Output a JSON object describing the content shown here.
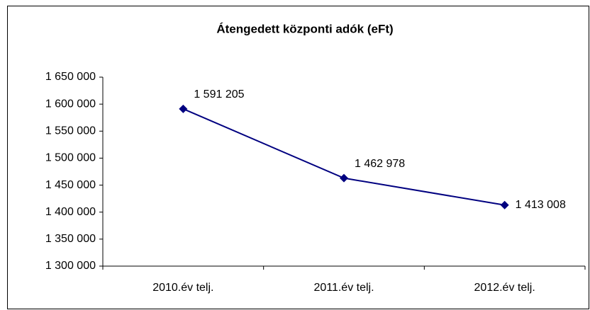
{
  "chart_data": {
    "type": "line",
    "title": "Átengedett központi adók (eFt)",
    "categories": [
      "2010.év telj.",
      "2011.év telj.",
      "2012.év telj."
    ],
    "series": [
      {
        "name": null,
        "color": "#000080",
        "values": [
          1591205,
          1462978,
          1413008
        ],
        "value_labels": [
          "1 591 205",
          "1 462 978",
          "1 413 008"
        ]
      }
    ],
    "ylim": [
      1300000,
      1650000
    ],
    "yticks": [
      {
        "value": 1300000,
        "label": "1 300 000"
      },
      {
        "value": 1350000,
        "label": "1 350 000"
      },
      {
        "value": 1400000,
        "label": "1 400 000"
      },
      {
        "value": 1450000,
        "label": "1 450 000"
      },
      {
        "value": 1500000,
        "label": "1 500 000"
      },
      {
        "value": 1550000,
        "label": "1 550 000"
      },
      {
        "value": 1600000,
        "label": "1 600 000"
      },
      {
        "value": 1650000,
        "label": "1 650 000"
      }
    ],
    "grid": false
  }
}
